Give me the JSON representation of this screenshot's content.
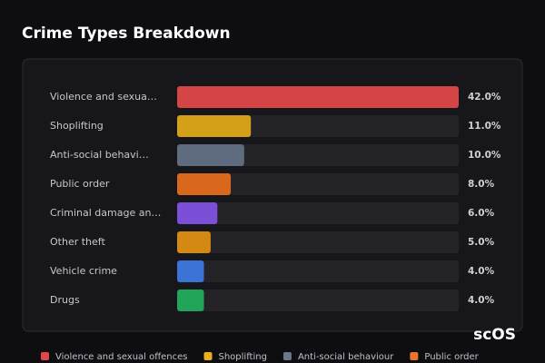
{
  "chart_data": {
    "type": "hbar",
    "title": "Crime Types Breakdown",
    "categories": [
      "Violence and sexua…",
      "Shoplifting",
      "Anti-social behavi…",
      "Public order",
      "Criminal damage an…",
      "Other theft",
      "Vehicle crime",
      "Drugs"
    ],
    "values": [
      42,
      11,
      10,
      8,
      6,
      5,
      4,
      4
    ],
    "value_labels": [
      "42.0%",
      "11.0%",
      "10.0%",
      "8.0%",
      "6.0%",
      "5.0%",
      "4.0%",
      "4.0%"
    ],
    "colors": [
      "#d64545",
      "#d4a017",
      "#5f6b7e",
      "#d9681c",
      "#7b4fd6",
      "#d48a12",
      "#3b74d6",
      "#22a559"
    ],
    "xlim": [
      0,
      42
    ],
    "legend": [
      {
        "name": "Violence and sexual offences",
        "color": "#e04848"
      },
      {
        "name": "Shoplifting",
        "color": "#e8b020"
      },
      {
        "name": "Anti-social behaviour",
        "color": "#6b778a"
      },
      {
        "name": "Public order",
        "color": "#e8752a"
      }
    ],
    "watermark": "scOS"
  }
}
